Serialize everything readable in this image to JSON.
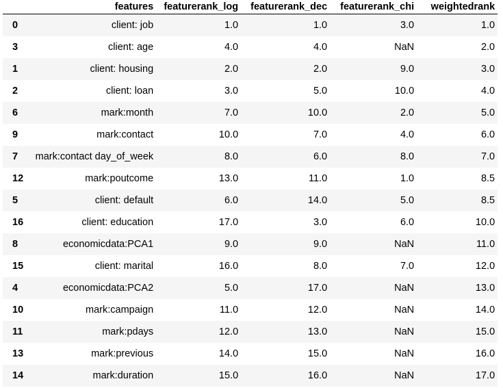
{
  "table": {
    "columns": [
      "",
      "features",
      "featurerank_log",
      "featurerank_dec",
      "featurerank_chi",
      "weightedrank"
    ],
    "rows": [
      {
        "index": "0",
        "features": "client: job",
        "log": "1.0",
        "dec": "1.0",
        "chi": "3.0",
        "wr": "1.0"
      },
      {
        "index": "3",
        "features": "client: age",
        "log": "4.0",
        "dec": "4.0",
        "chi": "NaN",
        "wr": "2.0"
      },
      {
        "index": "1",
        "features": "client: housing",
        "log": "2.0",
        "dec": "2.0",
        "chi": "9.0",
        "wr": "3.0"
      },
      {
        "index": "2",
        "features": "client: loan",
        "log": "3.0",
        "dec": "5.0",
        "chi": "10.0",
        "wr": "4.0"
      },
      {
        "index": "6",
        "features": "mark:month",
        "log": "7.0",
        "dec": "10.0",
        "chi": "2.0",
        "wr": "5.0"
      },
      {
        "index": "9",
        "features": "mark:contact",
        "log": "10.0",
        "dec": "7.0",
        "chi": "4.0",
        "wr": "6.0"
      },
      {
        "index": "7",
        "features": "mark:contact day_of_week",
        "log": "8.0",
        "dec": "6.0",
        "chi": "8.0",
        "wr": "7.0"
      },
      {
        "index": "12",
        "features": "mark:poutcome",
        "log": "13.0",
        "dec": "11.0",
        "chi": "1.0",
        "wr": "8.5"
      },
      {
        "index": "5",
        "features": "client: default",
        "log": "6.0",
        "dec": "14.0",
        "chi": "5.0",
        "wr": "8.5"
      },
      {
        "index": "16",
        "features": "client: education",
        "log": "17.0",
        "dec": "3.0",
        "chi": "6.0",
        "wr": "10.0"
      },
      {
        "index": "8",
        "features": "economicdata:PCA1",
        "log": "9.0",
        "dec": "9.0",
        "chi": "NaN",
        "wr": "11.0"
      },
      {
        "index": "15",
        "features": "client: marital",
        "log": "16.0",
        "dec": "8.0",
        "chi": "7.0",
        "wr": "12.0"
      },
      {
        "index": "4",
        "features": "economicdata:PCA2",
        "log": "5.0",
        "dec": "17.0",
        "chi": "NaN",
        "wr": "13.0"
      },
      {
        "index": "10",
        "features": "mark:campaign",
        "log": "11.0",
        "dec": "12.0",
        "chi": "NaN",
        "wr": "14.0"
      },
      {
        "index": "11",
        "features": "mark:pdays",
        "log": "12.0",
        "dec": "13.0",
        "chi": "NaN",
        "wr": "15.0"
      },
      {
        "index": "13",
        "features": "mark:previous",
        "log": "14.0",
        "dec": "15.0",
        "chi": "NaN",
        "wr": "16.0"
      },
      {
        "index": "14",
        "features": "mark:duration",
        "log": "15.0",
        "dec": "16.0",
        "chi": "NaN",
        "wr": "17.0"
      }
    ]
  },
  "colors": {
    "stripe_odd": "#f5f5f5",
    "stripe_even": "#ffffff",
    "header_rule": "#000000",
    "text": "#000000"
  }
}
